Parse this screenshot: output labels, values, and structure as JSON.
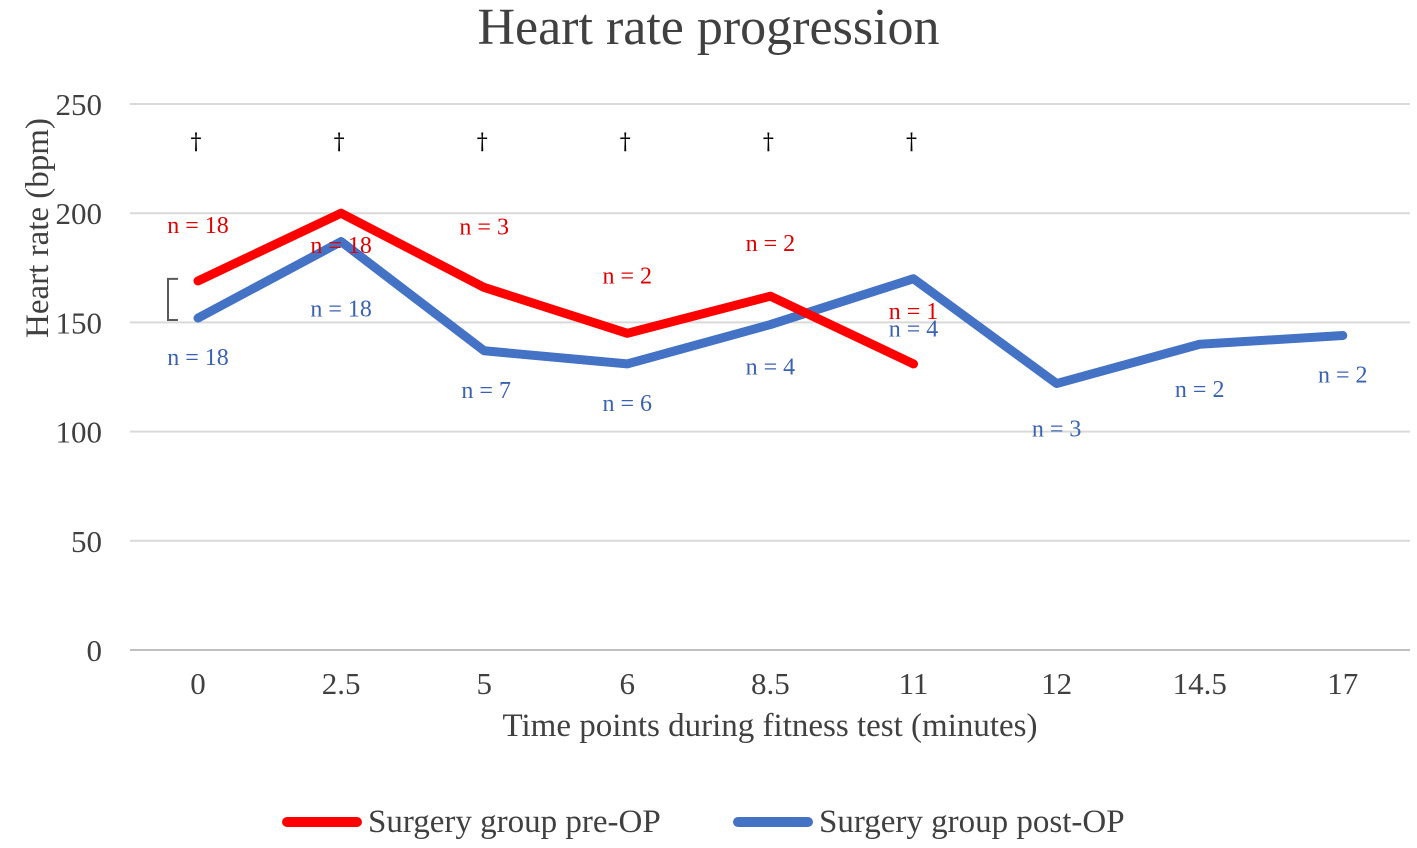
{
  "chart_data": {
    "type": "line",
    "title": "Heart rate progression",
    "xlabel": "Time points during fitness test (minutes)",
    "ylabel": "Heart rate (bpm)",
    "categories": [
      "0",
      "2.5",
      "5",
      "6",
      "8.5",
      "11",
      "12",
      "14.5",
      "17"
    ],
    "ylim": [
      0,
      250
    ],
    "yticks": [
      0,
      50,
      100,
      150,
      200,
      250
    ],
    "grid": true,
    "legend_position": "bottom",
    "series": [
      {
        "name": "Surgery group pre-OP",
        "color": "#ff0000",
        "values": [
          169,
          200,
          166,
          145,
          162,
          131,
          null,
          null,
          null
        ],
        "n_labels": [
          "n = 18",
          "n = 18",
          "n = 3",
          "n = 2",
          "n = 2",
          "n = 1",
          "",
          "",
          ""
        ]
      },
      {
        "name": "Surgery group post-OP",
        "color": "#4472c4",
        "values": [
          152,
          187,
          137,
          131,
          149,
          170,
          122,
          140,
          144
        ],
        "n_labels": [
          "n = 18",
          "n = 18",
          "n = 7",
          "n = 6",
          "n = 4",
          "n = 4",
          "n = 3",
          "n = 2",
          "n = 2"
        ]
      }
    ],
    "significance_markers": [
      "†",
      "†",
      "†",
      "†",
      "†",
      "†",
      "",
      "",
      ""
    ],
    "bracket_at_index": 0
  }
}
